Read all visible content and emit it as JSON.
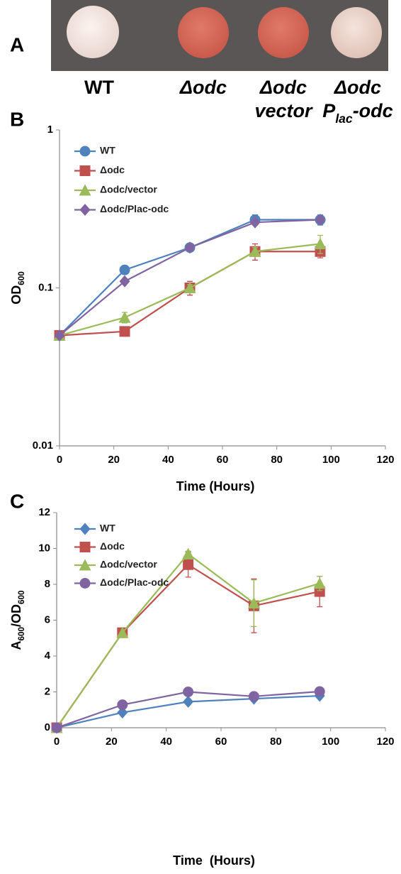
{
  "panel_a": {
    "label": "A",
    "strains": [
      [
        [
          "WT"
        ]
      ],
      [
        [
          "Δodc"
        ]
      ],
      [
        [
          "Δodc"
        ],
        [
          "vector"
        ]
      ],
      [
        [
          "Δodc"
        ],
        [
          "P",
          "lac",
          "-odc"
        ]
      ]
    ]
  },
  "chart_data": [
    {
      "type": "line",
      "panel": "B",
      "yscale": "log",
      "xlabel": "Time (Hours)",
      "ylabel": [
        "OD",
        "600"
      ],
      "x": [
        0,
        24,
        48,
        72,
        96
      ],
      "xlim": [
        0,
        120
      ],
      "xticks": [
        0,
        20,
        40,
        60,
        80,
        100,
        120
      ],
      "ylim": [
        0.01,
        1
      ],
      "yticks": [
        0.01,
        0.1,
        1
      ],
      "legend": "upper left",
      "series": [
        {
          "name": "WT",
          "color": "#4f81bd",
          "marker": "circle",
          "values": [
            0.05,
            0.13,
            0.18,
            0.27,
            0.27
          ],
          "errors": [
            null,
            null,
            null,
            0.02,
            0.02
          ]
        },
        {
          "name": "Δodc",
          "color": "#c0504d",
          "marker": "square",
          "values": [
            0.05,
            0.053,
            0.1,
            0.17,
            0.17
          ],
          "errors": [
            null,
            null,
            0.01,
            0.02,
            0.015
          ]
        },
        {
          "name": "Δodc/vector",
          "color": "#9bbb59",
          "marker": "triangle",
          "values": [
            0.05,
            0.065,
            0.1,
            0.17,
            0.19
          ],
          "errors": [
            null,
            0.005,
            0.005,
            0.01,
            0.025
          ]
        },
        {
          "name": "Δodc/Plac-odc",
          "color": "#8064a2",
          "marker": "diamond",
          "values": [
            0.05,
            0.11,
            0.18,
            0.26,
            0.27
          ],
          "errors": [
            null,
            null,
            null,
            0.01,
            0.01
          ]
        }
      ]
    },
    {
      "type": "line",
      "panel": "C",
      "yscale": "linear",
      "xlabel": "Time  (Hours)",
      "ylabel": [
        "A",
        "600",
        "/OD",
        "600"
      ],
      "x": [
        0,
        24,
        48,
        72,
        96
      ],
      "xlim": [
        0,
        120
      ],
      "xticks": [
        0,
        20,
        40,
        60,
        80,
        100,
        120
      ],
      "ylim": [
        0,
        12
      ],
      "yticks": [
        0,
        2,
        4,
        6,
        8,
        10,
        12
      ],
      "legend": "upper left",
      "series": [
        {
          "name": "WT",
          "color": "#4f81bd",
          "marker": "diamond",
          "values": [
            0,
            0.85,
            1.45,
            1.62,
            1.78
          ],
          "errors": [
            null,
            null,
            null,
            null,
            null
          ]
        },
        {
          "name": "Δodc",
          "color": "#c0504d",
          "marker": "square",
          "values": [
            0,
            5.3,
            9.1,
            6.8,
            7.6
          ],
          "errors": [
            null,
            0.1,
            0.7,
            1.5,
            0.85
          ]
        },
        {
          "name": "Δodc/vector",
          "color": "#9bbb59",
          "marker": "triangle",
          "values": [
            0,
            5.3,
            9.7,
            6.95,
            8.05
          ],
          "errors": [
            null,
            null,
            0.15,
            1.3,
            0.4
          ]
        },
        {
          "name": "Δodc/Plac-odc",
          "color": "#8064a2",
          "marker": "circle",
          "values": [
            0,
            1.28,
            2.0,
            1.75,
            2.02
          ],
          "errors": [
            null,
            null,
            null,
            null,
            null
          ]
        }
      ]
    }
  ]
}
